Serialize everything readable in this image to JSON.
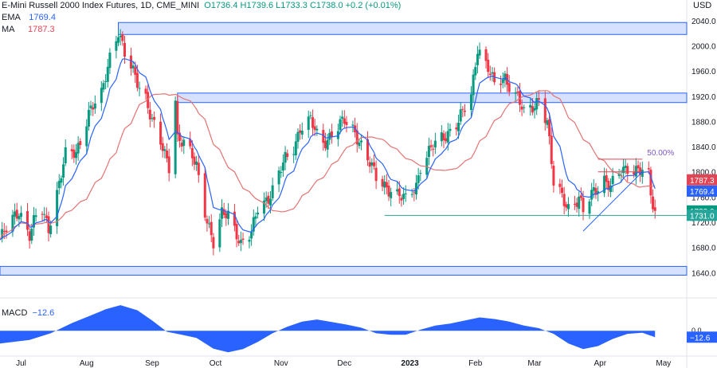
{
  "header": {
    "instrument": "E-Mini Russell 2000 Index Futures, 1D, CME_MINI",
    "ohlc": "O1736.4 H1739.6 L1733.3 C1738.0 +0.2 (+0.01%)",
    "ema_label": "EMA",
    "ema_value": "1769.4",
    "ma_label": "MA",
    "ma_value": "1787.3",
    "currency": "USD"
  },
  "macd": {
    "label": "MACD",
    "value": "−12.6",
    "zero_tick": "0.0",
    "badge": "−12.6"
  },
  "price_badges": [
    {
      "text": "1787.3",
      "value": 1787.3,
      "color": "#e04655"
    },
    {
      "text": "1769.4",
      "value": 1769.4,
      "color": "#2962ff"
    },
    {
      "text": "1738.0",
      "value": 1738.0,
      "color": "#089981"
    },
    {
      "text": "1731.0",
      "value": 1731.0,
      "color": "#26a69a"
    }
  ],
  "colors": {
    "up": "#089981",
    "down": "#f23645",
    "ema": "#2962ff",
    "ma": "#e57373",
    "zone_fill": "#d6e0ff",
    "zone_stroke": "#2962ff",
    "macd_fill": "#2962ff",
    "fib_line": "#e04655",
    "fib_text": "#7e57c2",
    "support": "#26a69a"
  },
  "chart_data": {
    "type": "candlestick",
    "y_axis_ticks": [
      1640,
      1680,
      1720,
      1760,
      1800,
      1840,
      1880,
      1920,
      1960,
      2000,
      2040
    ],
    "y_axis_labels": [
      "1640.0",
      "1680.0",
      "1720.0",
      "1760.0",
      "1800.0",
      "1840.0",
      "1880.0",
      "1920.0",
      "1960.0",
      "2000.0",
      "2040.0"
    ],
    "x_axis_labels": [
      "Jul",
      "Aug",
      "Sep",
      "Oct",
      "Nov",
      "Dec",
      "2023",
      "Feb",
      "Mar",
      "Apr",
      "May"
    ],
    "x_axis_dates": [
      "2022-07-01",
      "2022-08-01",
      "2022-09-01",
      "2022-10-01",
      "2022-11-01",
      "2022-12-01",
      "2023-01-01",
      "2023-02-01",
      "2023-03-01",
      "2023-04-01",
      "2023-05-01"
    ],
    "ylim": [
      1605,
      2055
    ],
    "fib_annotation": "50.00%",
    "zones": [
      {
        "from": "2022-08-16",
        "to": "2023-05-12",
        "low": 2018,
        "high": 2037
      },
      {
        "from": "2022-09-13",
        "to": "2023-05-12",
        "low": 1910,
        "high": 1925
      },
      {
        "from": "2022-06-21",
        "to": "2023-05-12",
        "low": 1636,
        "high": 1650
      }
    ],
    "support_line": {
      "from": "2022-12-20",
      "to": "2023-05-12",
      "value": 1731
    },
    "fib_levels": {
      "from": "2023-03-31",
      "to": "2023-04-21",
      "values": [
        1820,
        1800
      ]
    },
    "trendline": {
      "from": [
        "2023-03-24",
        1706
      ],
      "to": [
        "2023-04-21",
        1800
      ]
    },
    "anchors": [
      [
        "2022-06-21",
        1692
      ],
      [
        "2022-06-30",
        1740
      ],
      [
        "2022-07-05",
        1700
      ],
      [
        "2022-07-10",
        1745
      ],
      [
        "2022-07-14",
        1712
      ],
      [
        "2022-07-22",
        1825
      ],
      [
        "2022-07-27",
        1830
      ],
      [
        "2022-08-02",
        1895
      ],
      [
        "2022-08-08",
        1920
      ],
      [
        "2022-08-12",
        1985
      ],
      [
        "2022-08-16",
        2025
      ],
      [
        "2022-08-19",
        1985
      ],
      [
        "2022-08-24",
        1950
      ],
      [
        "2022-08-29",
        1920
      ],
      [
        "2022-09-01",
        1880
      ],
      [
        "2022-09-06",
        1835
      ],
      [
        "2022-09-09",
        1810
      ],
      [
        "2022-09-12",
        1920
      ],
      [
        "2022-09-13",
        1855
      ],
      [
        "2022-09-16",
        1845
      ],
      [
        "2022-09-22",
        1810
      ],
      [
        "2022-09-26",
        1740
      ],
      [
        "2022-09-30",
        1685
      ],
      [
        "2022-10-04",
        1730
      ],
      [
        "2022-10-07",
        1735
      ],
      [
        "2022-10-11",
        1705
      ],
      [
        "2022-10-13",
        1685
      ],
      [
        "2022-10-18",
        1700
      ],
      [
        "2022-10-21",
        1745
      ],
      [
        "2022-10-26",
        1760
      ],
      [
        "2022-10-28",
        1770
      ],
      [
        "2022-11-03",
        1820
      ],
      [
        "2022-11-07",
        1840
      ],
      [
        "2022-11-10",
        1870
      ],
      [
        "2022-11-15",
        1880
      ],
      [
        "2022-11-20",
        1845
      ],
      [
        "2022-11-25",
        1860
      ],
      [
        "2022-12-01",
        1880
      ],
      [
        "2022-12-06",
        1865
      ],
      [
        "2022-12-12",
        1820
      ],
      [
        "2022-12-16",
        1790
      ],
      [
        "2022-12-20",
        1780
      ],
      [
        "2022-12-27",
        1760
      ],
      [
        "2022-12-30",
        1755
      ],
      [
        "2023-01-04",
        1780
      ],
      [
        "2023-01-06",
        1810
      ],
      [
        "2023-01-12",
        1840
      ],
      [
        "2023-01-18",
        1860
      ],
      [
        "2023-01-24",
        1880
      ],
      [
        "2023-01-30",
        1920
      ],
      [
        "2023-02-02",
        2000
      ],
      [
        "2023-02-07",
        1965
      ],
      [
        "2023-02-10",
        1935
      ],
      [
        "2023-02-15",
        1950
      ],
      [
        "2023-02-21",
        1920
      ],
      [
        "2023-02-24",
        1890
      ],
      [
        "2023-03-01",
        1905
      ],
      [
        "2023-03-03",
        1920
      ],
      [
        "2023-03-07",
        1880
      ],
      [
        "2023-03-10",
        1780
      ],
      [
        "2023-03-14",
        1760
      ],
      [
        "2023-03-17",
        1745
      ],
      [
        "2023-03-22",
        1758
      ],
      [
        "2023-03-24",
        1735
      ],
      [
        "2023-03-29",
        1770
      ],
      [
        "2023-04-03",
        1790
      ],
      [
        "2023-04-06",
        1775
      ],
      [
        "2023-04-11",
        1800
      ],
      [
        "2023-04-14",
        1808
      ],
      [
        "2023-04-18",
        1805
      ],
      [
        "2023-04-21",
        1800
      ],
      [
        "2023-04-24",
        1790
      ],
      [
        "2023-04-25",
        1760
      ],
      [
        "2023-04-26",
        1748
      ],
      [
        "2023-04-27",
        1738
      ]
    ],
    "macd_envelope": [
      [
        "2022-06-21",
        -25
      ],
      [
        "2022-07-05",
        -18
      ],
      [
        "2022-07-15",
        -5
      ],
      [
        "2022-07-25",
        15
      ],
      [
        "2022-08-03",
        30
      ],
      [
        "2022-08-10",
        42
      ],
      [
        "2022-08-17",
        50
      ],
      [
        "2022-08-25",
        40
      ],
      [
        "2022-09-01",
        20
      ],
      [
        "2022-09-08",
        -2
      ],
      [
        "2022-09-15",
        -8
      ],
      [
        "2022-09-22",
        -14
      ],
      [
        "2022-09-30",
        -35
      ],
      [
        "2022-10-07",
        -42
      ],
      [
        "2022-10-14",
        -36
      ],
      [
        "2022-10-21",
        -22
      ],
      [
        "2022-10-28",
        -5
      ],
      [
        "2022-11-04",
        8
      ],
      [
        "2022-11-11",
        18
      ],
      [
        "2022-11-18",
        22
      ],
      [
        "2022-11-25",
        17
      ],
      [
        "2022-12-02",
        12
      ],
      [
        "2022-12-09",
        6
      ],
      [
        "2022-12-16",
        -5
      ],
      [
        "2022-12-23",
        -8
      ],
      [
        "2022-12-30",
        -8
      ],
      [
        "2023-01-06",
        2
      ],
      [
        "2023-01-13",
        10
      ],
      [
        "2023-01-20",
        14
      ],
      [
        "2023-01-27",
        20
      ],
      [
        "2023-02-03",
        26
      ],
      [
        "2023-02-10",
        23
      ],
      [
        "2023-02-17",
        18
      ],
      [
        "2023-02-24",
        10
      ],
      [
        "2023-03-03",
        5
      ],
      [
        "2023-03-10",
        -6
      ],
      [
        "2023-03-17",
        -25
      ],
      [
        "2023-03-24",
        -36
      ],
      [
        "2023-03-31",
        -30
      ],
      [
        "2023-04-07",
        -16
      ],
      [
        "2023-04-14",
        -6
      ],
      [
        "2023-04-21",
        -4
      ],
      [
        "2023-04-27",
        -12.6
      ]
    ],
    "macd_ylim": [
      -48,
      58
    ]
  }
}
